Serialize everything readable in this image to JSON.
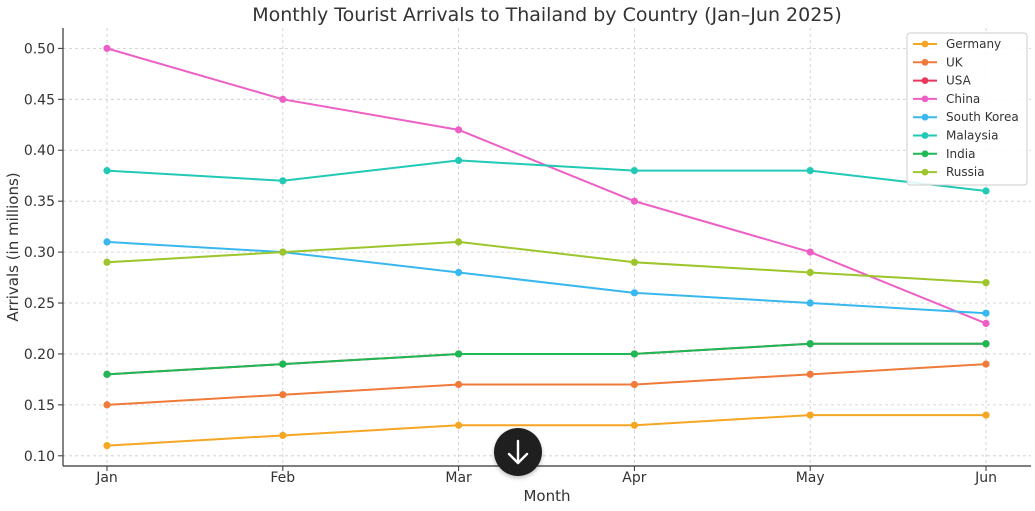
{
  "chart_data": {
    "type": "line",
    "title": "Monthly Tourist Arrivals to Thailand by Country (Jan–Jun 2025)",
    "xlabel": "Month",
    "ylabel": "Arrivals (in millions)",
    "categories": [
      "Jan",
      "Feb",
      "Mar",
      "Apr",
      "May",
      "Jun"
    ],
    "ylim": [
      0.09,
      0.52
    ],
    "yticks": [
      "0.10",
      "0.15",
      "0.20",
      "0.25",
      "0.30",
      "0.35",
      "0.40",
      "0.45",
      "0.50"
    ],
    "grid": true,
    "legend_position": "top-right",
    "series": [
      {
        "name": "Germany",
        "color": "#f5a623",
        "values": [
          0.11,
          0.12,
          0.13,
          0.13,
          0.14,
          0.14
        ]
      },
      {
        "name": "UK",
        "color": "#ef7a3a",
        "values": [
          0.15,
          0.16,
          0.17,
          0.17,
          0.18,
          0.19
        ]
      },
      {
        "name": "USA",
        "color": "#e8365d",
        "values": [
          0.18,
          0.19,
          0.2,
          0.2,
          0.21,
          0.21
        ]
      },
      {
        "name": "China",
        "color": "#ee5fc5",
        "values": [
          0.5,
          0.45,
          0.42,
          0.35,
          0.3,
          0.23
        ]
      },
      {
        "name": "South Korea",
        "color": "#38b8ee",
        "values": [
          0.31,
          0.3,
          0.28,
          0.26,
          0.25,
          0.24
        ]
      },
      {
        "name": "Malaysia",
        "color": "#22c9b5",
        "values": [
          0.38,
          0.37,
          0.39,
          0.38,
          0.38,
          0.36
        ]
      },
      {
        "name": "India",
        "color": "#1db954",
        "values": [
          0.18,
          0.19,
          0.2,
          0.2,
          0.21,
          0.21
        ]
      },
      {
        "name": "Russia",
        "color": "#9cc62b",
        "values": [
          0.29,
          0.3,
          0.31,
          0.29,
          0.28,
          0.27
        ]
      }
    ]
  },
  "controls": {
    "scroll_down_icon": "arrow-down-icon",
    "scroll_down_bg": "#1f1f1f"
  }
}
